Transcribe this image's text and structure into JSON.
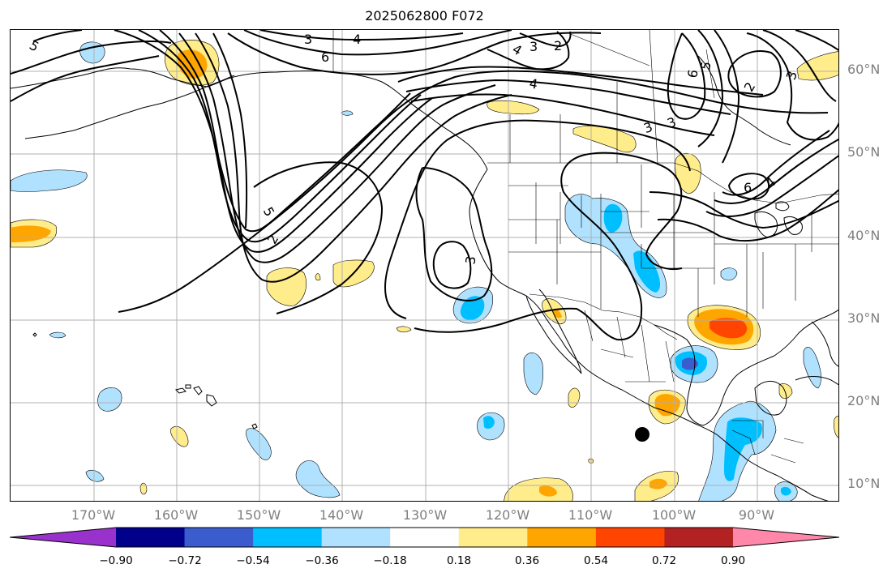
{
  "title": "2025062800 F072",
  "lat_labels": [
    "60°N",
    "50°N",
    "40°N",
    "30°N",
    "20°N",
    "10°N"
  ],
  "lon_labels": [
    "170°W",
    "160°W",
    "150°W",
    "140°W",
    "130°W",
    "120°W",
    "110°W",
    "100°W",
    "90°W"
  ],
  "colorbar": {
    "ticks": [
      "−0.90",
      "−0.72",
      "−0.54",
      "−0.36",
      "−0.18",
      "0.18",
      "0.36",
      "0.54",
      "0.72",
      "0.90"
    ],
    "colors": [
      "#9932cc",
      "#00008b",
      "#3a5ccc",
      "#00bfff",
      "#b0e2ff",
      "#ffffff",
      "#ffec8b",
      "#ffa500",
      "#ff4500",
      "#b22222",
      "#ff88aa"
    ]
  },
  "contour_labels": [
    "5",
    "3",
    "4",
    "6",
    "3",
    "2",
    "4",
    "3",
    "4",
    "6",
    "5",
    "2",
    "3",
    "5",
    "2",
    "3",
    "6",
    "4",
    "3"
  ],
  "marker": {
    "name": "storm-center-marker",
    "lat": 16.1,
    "lon": -103.6
  }
}
